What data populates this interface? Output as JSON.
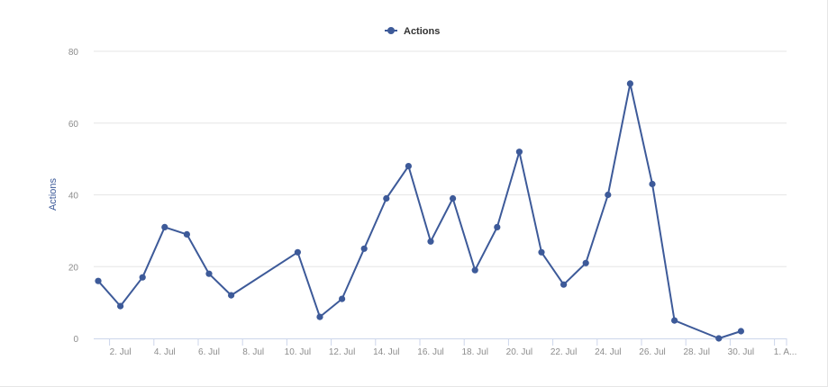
{
  "chart_data": {
    "type": "line",
    "title": "",
    "xlabel": "",
    "ylabel": "Actions",
    "ylim": [
      0,
      80
    ],
    "yticks": [
      0,
      20,
      40,
      60,
      80
    ],
    "grid": true,
    "legend_position": "top-center",
    "series": [
      {
        "name": "Actions",
        "color": "#3d5a99",
        "points": [
          {
            "x": "1 Jul",
            "y": 16
          },
          {
            "x": "2 Jul",
            "y": 9
          },
          {
            "x": "3 Jul",
            "y": 17
          },
          {
            "x": "4 Jul",
            "y": 31
          },
          {
            "x": "5 Jul",
            "y": 29
          },
          {
            "x": "6 Jul",
            "y": 18
          },
          {
            "x": "7 Jul",
            "y": 12
          },
          {
            "x": "10 Jul",
            "y": 24
          },
          {
            "x": "11 Jul",
            "y": 6
          },
          {
            "x": "12 Jul",
            "y": 11
          },
          {
            "x": "13 Jul",
            "y": 25
          },
          {
            "x": "14 Jul",
            "y": 39
          },
          {
            "x": "15 Jul",
            "y": 48
          },
          {
            "x": "16 Jul",
            "y": 27
          },
          {
            "x": "17 Jul",
            "y": 39
          },
          {
            "x": "18 Jul",
            "y": 19
          },
          {
            "x": "19 Jul",
            "y": 31
          },
          {
            "x": "20 Jul",
            "y": 52
          },
          {
            "x": "21 Jul",
            "y": 24
          },
          {
            "x": "22 Jul",
            "y": 15
          },
          {
            "x": "23 Jul",
            "y": 21
          },
          {
            "x": "24 Jul",
            "y": 40
          },
          {
            "x": "25 Jul",
            "y": 71
          },
          {
            "x": "26 Jul",
            "y": 43
          },
          {
            "x": "27 Jul",
            "y": 5
          },
          {
            "x": "29 Jul",
            "y": 0
          },
          {
            "x": "30 Jul",
            "y": 2
          }
        ]
      }
    ],
    "xticks": [
      {
        "x": "2 Jul",
        "label": "2. Jul"
      },
      {
        "x": "4 Jul",
        "label": "4. Jul"
      },
      {
        "x": "6 Jul",
        "label": "6. Jul"
      },
      {
        "x": "8 Jul",
        "label": "8. Jul"
      },
      {
        "x": "10 Jul",
        "label": "10. Jul"
      },
      {
        "x": "12 Jul",
        "label": "12. Jul"
      },
      {
        "x": "14 Jul",
        "label": "14. Jul"
      },
      {
        "x": "16 Jul",
        "label": "16. Jul"
      },
      {
        "x": "18 Jul",
        "label": "18. Jul"
      },
      {
        "x": "20 Jul",
        "label": "20. Jul"
      },
      {
        "x": "22 Jul",
        "label": "22. Jul"
      },
      {
        "x": "24 Jul",
        "label": "24. Jul"
      },
      {
        "x": "26 Jul",
        "label": "26. Jul"
      },
      {
        "x": "28 Jul",
        "label": "28. Jul"
      },
      {
        "x": "30 Jul",
        "label": "30. Jul"
      },
      {
        "x": "1 Aug",
        "label": "1. A..."
      }
    ]
  }
}
